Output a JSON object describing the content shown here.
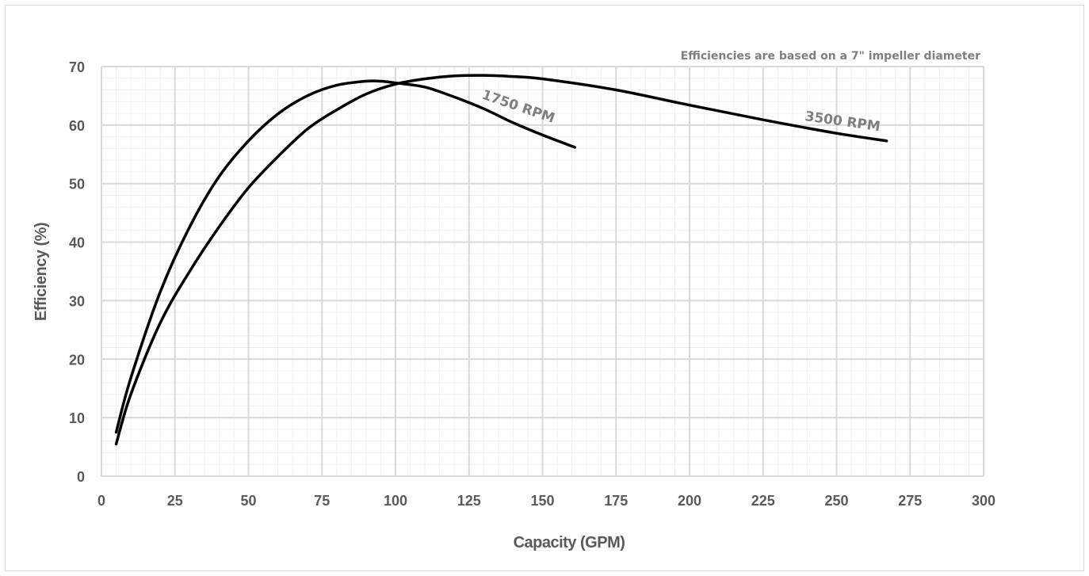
{
  "chart_data": {
    "type": "line",
    "title": "",
    "xlabel": "Capacity (GPM)",
    "ylabel": "Efficiency (%)",
    "xlim": [
      0,
      300
    ],
    "ylim": [
      0,
      70
    ],
    "x_ticks": [
      "0",
      "25",
      "50",
      "75",
      "100",
      "125",
      "150",
      "175",
      "200",
      "225",
      "250",
      "275",
      "300"
    ],
    "y_ticks": [
      "0",
      "10",
      "20",
      "30",
      "40",
      "50",
      "60",
      "70"
    ],
    "grid": true,
    "minor_grid": true,
    "annotation": "Efficiencies are based on a 7\" impeller diameter",
    "series": [
      {
        "name": "1750 RPM",
        "color": "#000000",
        "x": [
          5,
          10,
          20,
          30,
          40,
          50,
          60,
          70,
          80,
          90,
          95,
          100,
          110,
          120,
          130,
          140,
          150,
          161
        ],
        "y": [
          7.5,
          16.8,
          31.5,
          42.6,
          51.2,
          57.3,
          61.9,
          65.0,
          66.8,
          67.5,
          67.5,
          67.2,
          66.5,
          64.8,
          62.8,
          60.4,
          58.3,
          56.2
        ]
      },
      {
        "name": "3500 RPM",
        "color": "#000000",
        "x": [
          5,
          10,
          20,
          30,
          40,
          50,
          60,
          70,
          80,
          90,
          100,
          110,
          120,
          130,
          140,
          150,
          175,
          200,
          225,
          250,
          267
        ],
        "y": [
          5.5,
          14.0,
          26.2,
          35.0,
          42.6,
          49.3,
          54.6,
          59.3,
          62.6,
          65.3,
          67.0,
          67.9,
          68.4,
          68.5,
          68.3,
          67.9,
          66.0,
          63.4,
          60.9,
          58.6,
          57.3
        ]
      }
    ]
  }
}
